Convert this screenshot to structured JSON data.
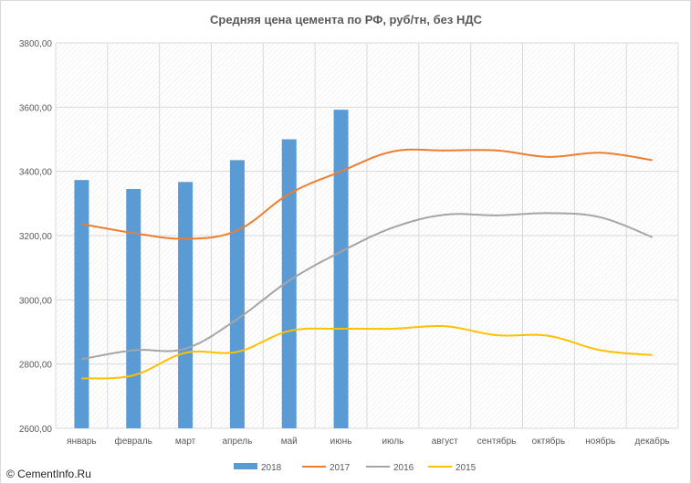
{
  "footer": "© CementInfo.Ru",
  "chart_data": {
    "type": "bar+line",
    "title": "Средняя цена цемента по РФ, руб/тн, без НДС",
    "categories": [
      "январь",
      "февраль",
      "март",
      "апрель",
      "май",
      "июнь",
      "июль",
      "август",
      "сентябрь",
      "октябрь",
      "ноябрь",
      "декабрь"
    ],
    "ylim": [
      2600,
      3800
    ],
    "yticks": [
      2600,
      2800,
      3000,
      3200,
      3400,
      3600,
      3800
    ],
    "ytick_labels": [
      "2600,00",
      "2800,00",
      "3000,00",
      "3200,00",
      "3400,00",
      "3600,00",
      "3800,00"
    ],
    "grid": true,
    "legend_position": "bottom",
    "series": [
      {
        "name": "2018",
        "kind": "bar",
        "color": "#5b9bd5",
        "values": [
          3373,
          3345,
          3367,
          3435,
          3500,
          3592,
          null,
          null,
          null,
          null,
          null,
          null
        ]
      },
      {
        "name": "2017",
        "kind": "line",
        "color": "#ed7d31",
        "values": [
          3236,
          3208,
          3190,
          3216,
          3330,
          3400,
          3462,
          3465,
          3465,
          3445,
          3458,
          3435
        ]
      },
      {
        "name": "2016",
        "kind": "line",
        "color": "#a5a5a5",
        "values": [
          2815,
          2843,
          2848,
          2940,
          3060,
          3150,
          3225,
          3265,
          3263,
          3270,
          3257,
          3195
        ]
      },
      {
        "name": "2015",
        "kind": "line",
        "color": "#ffc000",
        "values": [
          2755,
          2765,
          2835,
          2838,
          2903,
          2910,
          2910,
          2918,
          2890,
          2888,
          2843,
          2828
        ]
      }
    ]
  }
}
